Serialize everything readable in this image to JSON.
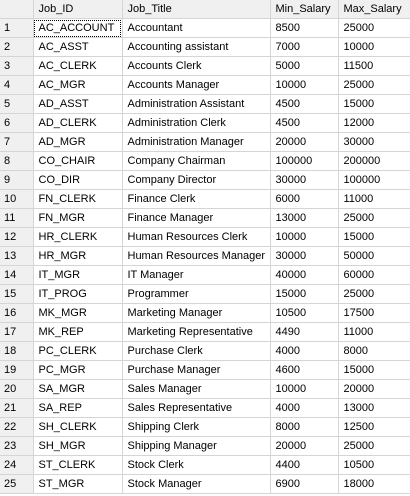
{
  "grid": {
    "columns": [
      "Job_ID",
      "Job_Title",
      "Min_Salary",
      "Max_Salary"
    ],
    "selected_cell": {
      "row": 1,
      "column": "Job_ID"
    },
    "rows": [
      {
        "num": "1",
        "job_id": "AC_ACCOUNT",
        "job_title": "Accountant",
        "min_salary": "8500",
        "max_salary": "25000"
      },
      {
        "num": "2",
        "job_id": "AC_ASST",
        "job_title": "Accounting assistant",
        "min_salary": "7000",
        "max_salary": "10000"
      },
      {
        "num": "3",
        "job_id": "AC_CLERK",
        "job_title": "Accounts Clerk",
        "min_salary": "5000",
        "max_salary": "11500"
      },
      {
        "num": "4",
        "job_id": "AC_MGR",
        "job_title": "Accounts Manager",
        "min_salary": "10000",
        "max_salary": "25000"
      },
      {
        "num": "5",
        "job_id": "AD_ASST",
        "job_title": "Administration Assistant",
        "min_salary": "4500",
        "max_salary": "15000"
      },
      {
        "num": "6",
        "job_id": "AD_CLERK",
        "job_title": "Administration Clerk",
        "min_salary": "4500",
        "max_salary": "12000"
      },
      {
        "num": "7",
        "job_id": "AD_MGR",
        "job_title": "Administration Manager",
        "min_salary": "20000",
        "max_salary": "30000"
      },
      {
        "num": "8",
        "job_id": "CO_CHAIR",
        "job_title": "Company Chairman",
        "min_salary": "100000",
        "max_salary": "200000"
      },
      {
        "num": "9",
        "job_id": "CO_DIR",
        "job_title": "Company Director",
        "min_salary": "30000",
        "max_salary": "100000"
      },
      {
        "num": "10",
        "job_id": "FN_CLERK",
        "job_title": "Finance Clerk",
        "min_salary": "6000",
        "max_salary": "11000"
      },
      {
        "num": "11",
        "job_id": "FN_MGR",
        "job_title": "Finance Manager",
        "min_salary": "13000",
        "max_salary": "25000"
      },
      {
        "num": "12",
        "job_id": "HR_CLERK",
        "job_title": "Human Resources Clerk",
        "min_salary": "10000",
        "max_salary": "15000"
      },
      {
        "num": "13",
        "job_id": "HR_MGR",
        "job_title": "Human Resources Manager",
        "min_salary": "30000",
        "max_salary": "50000"
      },
      {
        "num": "14",
        "job_id": "IT_MGR",
        "job_title": "IT Manager",
        "min_salary": "40000",
        "max_salary": "60000"
      },
      {
        "num": "15",
        "job_id": "IT_PROG",
        "job_title": "Programmer",
        "min_salary": "15000",
        "max_salary": "25000"
      },
      {
        "num": "16",
        "job_id": "MK_MGR",
        "job_title": "Marketing Manager",
        "min_salary": "10500",
        "max_salary": "17500"
      },
      {
        "num": "17",
        "job_id": "MK_REP",
        "job_title": "Marketing Representative",
        "min_salary": "4490",
        "max_salary": "11000"
      },
      {
        "num": "18",
        "job_id": "PC_CLERK",
        "job_title": "Purchase Clerk",
        "min_salary": "4000",
        "max_salary": "8000"
      },
      {
        "num": "19",
        "job_id": "PC_MGR",
        "job_title": "Purchase Manager",
        "min_salary": "4600",
        "max_salary": "15000"
      },
      {
        "num": "20",
        "job_id": "SA_MGR",
        "job_title": "Sales Manager",
        "min_salary": "10000",
        "max_salary": "20000"
      },
      {
        "num": "21",
        "job_id": "SA_REP",
        "job_title": "Sales Representative",
        "min_salary": "4000",
        "max_salary": "13000"
      },
      {
        "num": "22",
        "job_id": "SH_CLERK",
        "job_title": "Shipping Clerk",
        "min_salary": "8000",
        "max_salary": "12500"
      },
      {
        "num": "23",
        "job_id": "SH_MGR",
        "job_title": "Shipping Manager",
        "min_salary": "20000",
        "max_salary": "25000"
      },
      {
        "num": "24",
        "job_id": "ST_CLERK",
        "job_title": "Stock Clerk",
        "min_salary": "4400",
        "max_salary": "10500"
      },
      {
        "num": "25",
        "job_id": "ST_MGR",
        "job_title": "Stock Manager",
        "min_salary": "6900",
        "max_salary": "18000"
      }
    ]
  }
}
